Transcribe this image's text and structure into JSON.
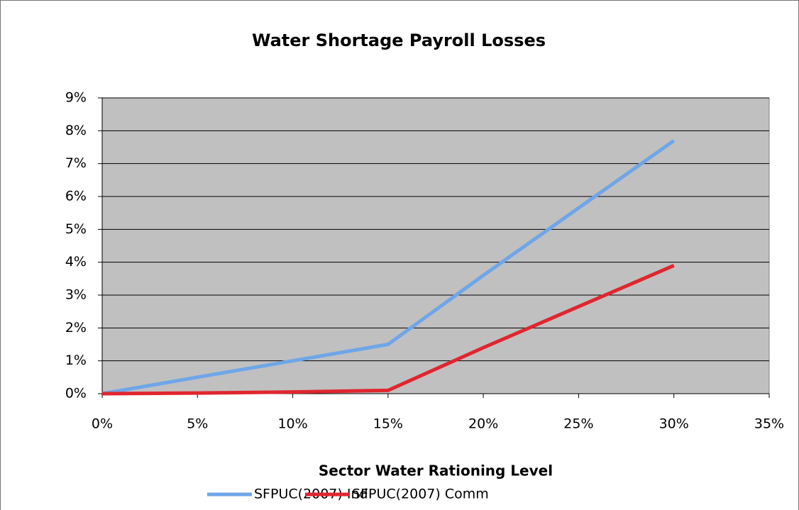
{
  "chart_data": {
    "type": "line",
    "title": "Water Shortage Payroll Losses",
    "x_label": "Sector Water Rationing Level",
    "x": [
      0,
      5,
      10,
      15,
      20,
      25,
      30
    ],
    "series": [
      {
        "name": "SFPUC(2007) Ind",
        "color": "#6ea6e8",
        "values": [
          0,
          0.5,
          1.0,
          1.5,
          3.6,
          5.65,
          7.7
        ]
      },
      {
        "name": "SFPUC(2007) Comm",
        "color": "#e0262e",
        "values": [
          0,
          0.02,
          0.05,
          0.1,
          1.4,
          2.65,
          3.9
        ]
      }
    ],
    "xlim": [
      0,
      35
    ],
    "xticks": [
      {
        "value": 0,
        "label": "0%"
      },
      {
        "value": 5,
        "label": "5%"
      },
      {
        "value": 10,
        "label": "10%"
      },
      {
        "value": 15,
        "label": "15%"
      },
      {
        "value": 20,
        "label": "20%"
      },
      {
        "value": 25,
        "label": "25%"
      },
      {
        "value": 30,
        "label": "30%"
      },
      {
        "value": 35,
        "label": "35%"
      }
    ],
    "ylim": [
      0,
      9
    ],
    "yticks": [
      {
        "value": 0,
        "label": "0%"
      },
      {
        "value": 1,
        "label": "1%"
      },
      {
        "value": 2,
        "label": "2%"
      },
      {
        "value": 3,
        "label": "3%"
      },
      {
        "value": 4,
        "label": "4%"
      },
      {
        "value": 5,
        "label": "5%"
      },
      {
        "value": 6,
        "label": "6%"
      },
      {
        "value": 7,
        "label": "7%"
      },
      {
        "value": 8,
        "label": "8%"
      },
      {
        "value": 9,
        "label": "9%"
      }
    ],
    "grid": true,
    "legend": "bottom",
    "plot_background": "#c0c0c0"
  }
}
